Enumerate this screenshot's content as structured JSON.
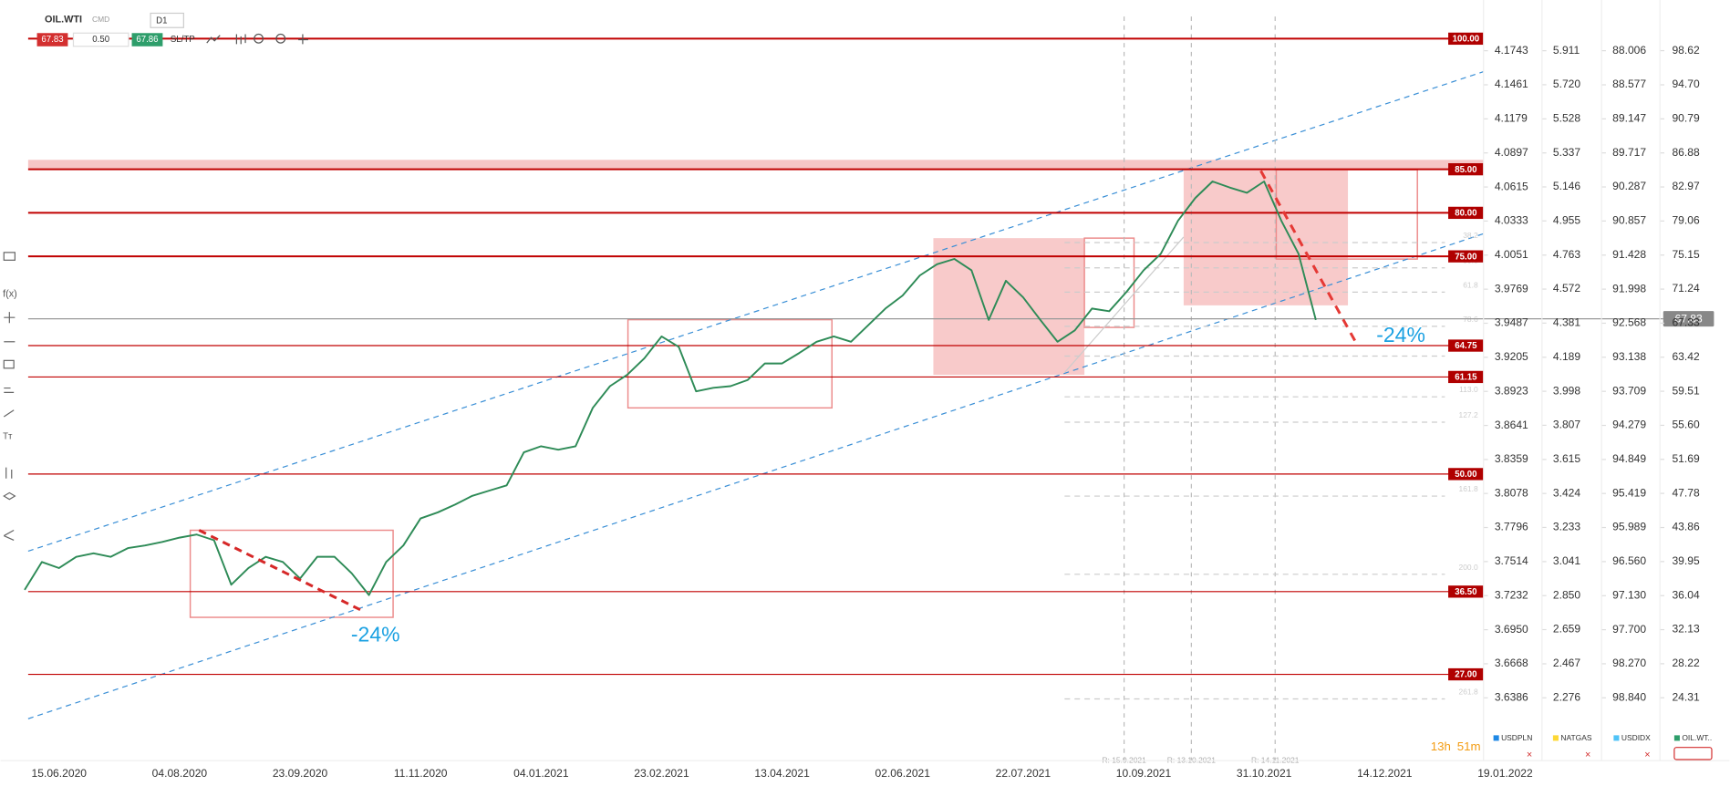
{
  "chart_data": {
    "type": "line",
    "toolbar": {
      "symbol": "OIL.WTI",
      "group": "CMD",
      "timeframe": "D1",
      "bid": "67.83",
      "spread": "0.50",
      "ask": "67.86",
      "sltp": "SL/TP"
    },
    "categories": [
      null,
      null,
      "15.06.2020",
      null,
      null,
      null,
      null,
      null,
      null,
      "04.08.2020",
      null,
      null,
      null,
      null,
      null,
      null,
      "23.09.2020",
      null,
      null,
      null,
      null,
      null,
      null,
      "11.11.2020",
      null,
      null,
      null,
      null,
      null,
      null,
      "04.01.2021",
      null,
      null,
      null,
      null,
      null,
      null,
      "23.02.2021",
      null,
      null,
      null,
      null,
      null,
      null,
      "13.04.2021",
      null,
      null,
      null,
      null,
      null,
      null,
      "02.06.2021",
      null,
      null,
      null,
      null,
      null,
      null,
      "22.07.2021",
      null,
      null,
      null,
      null,
      null,
      null,
      "10.09.2021",
      null,
      null,
      null,
      null,
      null,
      null,
      "31.10.2021",
      null,
      null,
      null,
      null,
      null,
      null,
      "14.12.2021",
      null,
      null,
      null,
      null,
      null,
      null,
      "19.01.2022",
      null
    ],
    "series": [
      {
        "name": "OIL.WTI",
        "color": "#2e8b57",
        "values": [
          36.7,
          39.9,
          39.2,
          40.5,
          40.9,
          40.5,
          41.5,
          41.8,
          42.2,
          42.7,
          43.05,
          42.4,
          37.3,
          39.2,
          40.5,
          39.9,
          38,
          40.5,
          40.5,
          38.6,
          36.1,
          39.9,
          41.8,
          44.9,
          45.6,
          46.5,
          47.5,
          48.1,
          48.7,
          52.5,
          53.2,
          52.8,
          53.2,
          57.6,
          60.1,
          61.4,
          63.3,
          65.8,
          64.6,
          59.5,
          59.9,
          60.1,
          60.8,
          62.7,
          62.7,
          63.9,
          65.2,
          65.8,
          65.2,
          67.1,
          69,
          70.5,
          72.8,
          74.1,
          74.7,
          73.4,
          67.7,
          72.2,
          70.3,
          67.7,
          65.2,
          66.5,
          69,
          68.7,
          70.9,
          73.4,
          75.3,
          79.1,
          81.7,
          83.6,
          82.9,
          82.3,
          83.6,
          79.1,
          75.3,
          67.7,
          null,
          null,
          null,
          null,
          null,
          null,
          null,
          null,
          null,
          null,
          null,
          null
        ]
      }
    ],
    "ylim": [
      17.09,
      104.44
    ],
    "yticks": [
      98.62,
      {
        "value": 94.7,
        "label": "94.70"
      },
      90.79,
      86.88,
      82.97,
      79.06,
      75.15,
      71.24,
      67.33,
      63.42,
      59.51,
      {
        "value": 55.6,
        "label": "55.60"
      },
      51.69,
      47.78,
      43.86,
      39.95,
      36.04,
      32.13,
      28.22,
      24.31
    ],
    "axes": [
      {
        "ylim": [
          3.5866,
          4.2163
        ],
        "ticks": [
          4.1743,
          4.1461,
          4.1179,
          4.0897,
          4.0615,
          4.0333,
          4.0051,
          3.9769,
          3.9487,
          3.9205,
          3.8923,
          3.8641,
          3.8359,
          3.8078,
          3.7796,
          3.7514,
          3.7232,
          {
            "value": 3.695,
            "label": "3.6950"
          },
          3.6668,
          3.6386
        ]
      },
      {
        "ylim": [
          1.923,
          6.196
        ],
        "ticks": [
          5.911,
          {
            "value": 5.72,
            "label": "5.720"
          },
          5.528,
          5.337,
          5.146,
          4.955,
          4.763,
          4.572,
          4.381,
          4.189,
          3.998,
          3.807,
          3.615,
          3.424,
          3.233,
          3.041,
          {
            "value": 2.85,
            "label": "2.850"
          },
          2.659,
          2.467,
          2.276
        ]
      },
      {
        "ylim": [
          99.892,
          87.157
        ],
        "ticks": [
          88.006,
          88.577,
          89.147,
          89.717,
          90.287,
          90.857,
          91.428,
          91.998,
          92.568,
          93.138,
          93.709,
          94.279,
          94.849,
          95.419,
          95.989,
          {
            "value": 96.56,
            "label": "96.560"
          },
          {
            "value": 97.13,
            "label": "97.130"
          },
          {
            "value": 97.7,
            "label": "97.700"
          },
          {
            "value": 98.27,
            "label": "98.270"
          },
          {
            "value": 98.84,
            "label": "98.840"
          }
        ]
      }
    ],
    "levels": [
      {
        "value": 100,
        "label": "100.00"
      },
      {
        "value": 85,
        "label": "85.00"
      },
      {
        "value": 80,
        "label": "80.00"
      },
      {
        "value": 75,
        "label": "75.00"
      },
      {
        "value": 64.75,
        "label": "64.75"
      },
      {
        "value": 61.15,
        "label": "61.15"
      },
      {
        "value": 50,
        "label": "50.00"
      },
      {
        "value": 36.5,
        "label": "36.50"
      },
      {
        "value": 27,
        "label": "27.00"
      }
    ],
    "fib_levels": [
      {
        "value": 76.59,
        "label": "38.2"
      },
      {
        "value": 73.68,
        "label": "50.0"
      },
      {
        "value": 70.89,
        "label": "61.8"
      },
      {
        "value": 66.97,
        "label": "78.6"
      },
      {
        "value": 63.55,
        "label": "100.0"
      },
      {
        "value": 58.87,
        "label": "113.0"
      },
      {
        "value": 55.96,
        "label": "127.2"
      },
      {
        "value": 47.47,
        "label": "161.8"
      },
      {
        "value": 38.49,
        "label": "200.0"
      },
      {
        "value": 24.18,
        "label": "261.8"
      }
    ],
    "last_price": 67.83,
    "annotations": [
      "-24%",
      "-24%"
    ],
    "reference_labels": [
      "R: 15.9.2021",
      "R: 13.10.2021",
      "R: 14.11.2021"
    ],
    "timer": {
      "hours": "13h",
      "minutes": "51m"
    },
    "tabs": [
      "USDPLN",
      "NATGAS",
      "USDIDX",
      "OIL.WT.."
    ]
  }
}
